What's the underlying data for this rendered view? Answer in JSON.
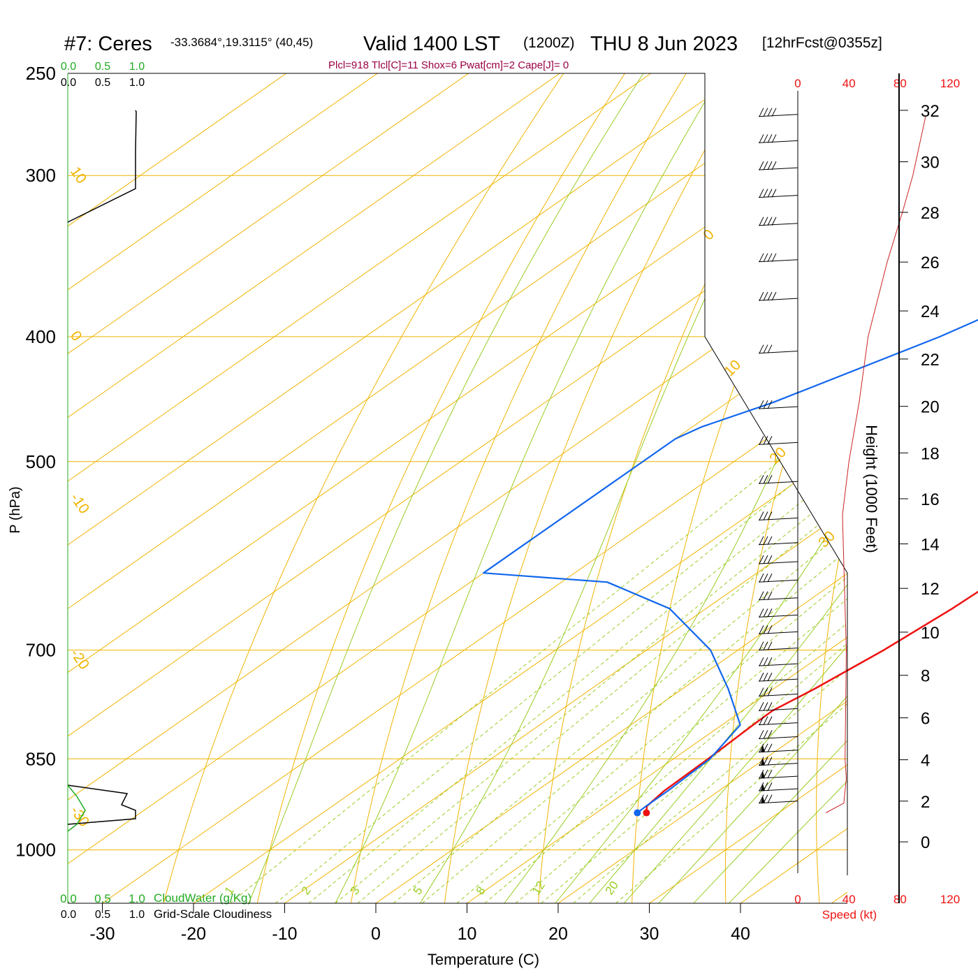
{
  "header": {
    "station": "#7: Ceres",
    "coords": "-33.3684°,19.3115° (40,45)",
    "valid": "Valid 1400 LST",
    "zulu": "(1200Z)",
    "date": "THU 8 Jun 2023",
    "forecast": "[12hrFcst@0355z]",
    "params": "Plcl=918 Tlcl[C]=11 Shox=6 Pwat[cm]=2 Cape[J]= 0"
  },
  "axes": {
    "ylabel": "P (hPa)",
    "xlabel": "Temperature (C)",
    "height_label": "Height (1000 Feet)",
    "speed_label": "Speed (kt)"
  },
  "legend": {
    "cloudwater_label": "CloudWater (g/Kg)",
    "cloudiness_label": "Grid-Scale Cloudiness",
    "cloudwater_ticks": [
      "0.0",
      "0.5",
      "1.0"
    ],
    "cloudiness_ticks": [
      "0.0",
      "0.5",
      "1.0"
    ]
  },
  "colors": {
    "temperature": "#ee1111",
    "dewpoint": "#1166ee",
    "isotherm": "#f0b400",
    "dry_adiabat": "#f0b400",
    "moist_adiabat": "#99cc22",
    "mixing_ratio": "#99cc22",
    "cloudwater": "#22aa22",
    "speed": "#cc2222",
    "title_params": "#990044"
  },
  "chart_data": {
    "type": "line",
    "title": "Valid 1400 LST (1200Z) THU 8 Jun 2023",
    "pressure_ticks": [
      250,
      300,
      400,
      500,
      700,
      850,
      1000
    ],
    "temperature_ticks": [
      -30,
      -20,
      -10,
      0,
      10,
      20,
      30,
      40
    ],
    "isotherm_labels": [
      "10",
      "0",
      "-10",
      "-20",
      "-30",
      "0",
      "10",
      "20",
      "30"
    ],
    "mixing_ratio_labels": [
      "1",
      "2",
      "3",
      "5",
      "8",
      "12",
      "20"
    ],
    "height_ticks": [
      0,
      2,
      4,
      6,
      8,
      10,
      12,
      14,
      16,
      18,
      20,
      22,
      24,
      26,
      28,
      30,
      32
    ],
    "speed_ticks": [
      0,
      40,
      80,
      120
    ],
    "skew_deg_per_hpa_log": "skew-T log-p",
    "series": [
      {
        "name": "Temperature",
        "points": [
          {
            "p": 936,
            "t": 15.5
          },
          {
            "p": 925,
            "t": 14.5
          },
          {
            "p": 900,
            "t": 14.0
          },
          {
            "p": 850,
            "t": 13.8
          },
          {
            "p": 800,
            "t": 13.4
          },
          {
            "p": 780,
            "t": 13.3
          },
          {
            "p": 750,
            "t": 14.5
          },
          {
            "p": 700,
            "t": 16.0
          },
          {
            "p": 650,
            "t": 17.0
          },
          {
            "p": 620,
            "t": 17.3
          },
          {
            "p": 600,
            "t": 17.2
          },
          {
            "p": 570,
            "t": 16.0
          },
          {
            "p": 540,
            "t": 14.2
          },
          {
            "p": 500,
            "t": 12.5
          },
          {
            "p": 450,
            "t": 9.0
          },
          {
            "p": 400,
            "t": 5.5
          },
          {
            "p": 350,
            "t": 1.0
          },
          {
            "p": 320,
            "t": -2.0
          },
          {
            "p": 300,
            "t": -4.5
          },
          {
            "p": 270,
            "t": -7.5
          }
        ]
      },
      {
        "name": "Dewpoint",
        "points": [
          {
            "p": 936,
            "t": 14.5
          },
          {
            "p": 925,
            "t": 14.4
          },
          {
            "p": 900,
            "t": 14.4
          },
          {
            "p": 850,
            "t": 14.0
          },
          {
            "p": 800,
            "t": 12.0
          },
          {
            "p": 750,
            "t": 5.0
          },
          {
            "p": 700,
            "t": -3.0
          },
          {
            "p": 650,
            "t": -14.0
          },
          {
            "p": 620,
            "t": -25.0
          },
          {
            "p": 610,
            "t": -40.0
          },
          {
            "p": 480,
            "t": -40.0
          },
          {
            "p": 470,
            "t": -39.0
          },
          {
            "p": 450,
            "t": -35.0
          },
          {
            "p": 400,
            "t": -27.0
          },
          {
            "p": 370,
            "t": -23.0
          },
          {
            "p": 340,
            "t": -21.5
          },
          {
            "p": 320,
            "t": -21.5
          },
          {
            "p": 300,
            "t": -22.0
          },
          {
            "p": 270,
            "t": -24.0
          }
        ]
      },
      {
        "name": "Speed",
        "points": [
          {
            "p": 936,
            "v": 22
          },
          {
            "p": 920,
            "v": 36
          },
          {
            "p": 880,
            "v": 38
          },
          {
            "p": 850,
            "v": 37
          },
          {
            "p": 700,
            "v": 38
          },
          {
            "p": 600,
            "v": 36
          },
          {
            "p": 550,
            "v": 35
          },
          {
            "p": 500,
            "v": 40
          },
          {
            "p": 450,
            "v": 48
          },
          {
            "p": 400,
            "v": 55
          },
          {
            "p": 350,
            "v": 70
          },
          {
            "p": 320,
            "v": 82
          },
          {
            "p": 300,
            "v": 90
          },
          {
            "p": 270,
            "v": 100
          }
        ]
      }
    ],
    "wind_barb_pressures": [
      270,
      283,
      297,
      312,
      328,
      350,
      375,
      412,
      455,
      485,
      520,
      555,
      580,
      600,
      620,
      640,
      660,
      680,
      700,
      720,
      740,
      760,
      780,
      800,
      820,
      840,
      860,
      880,
      900,
      920
    ]
  }
}
